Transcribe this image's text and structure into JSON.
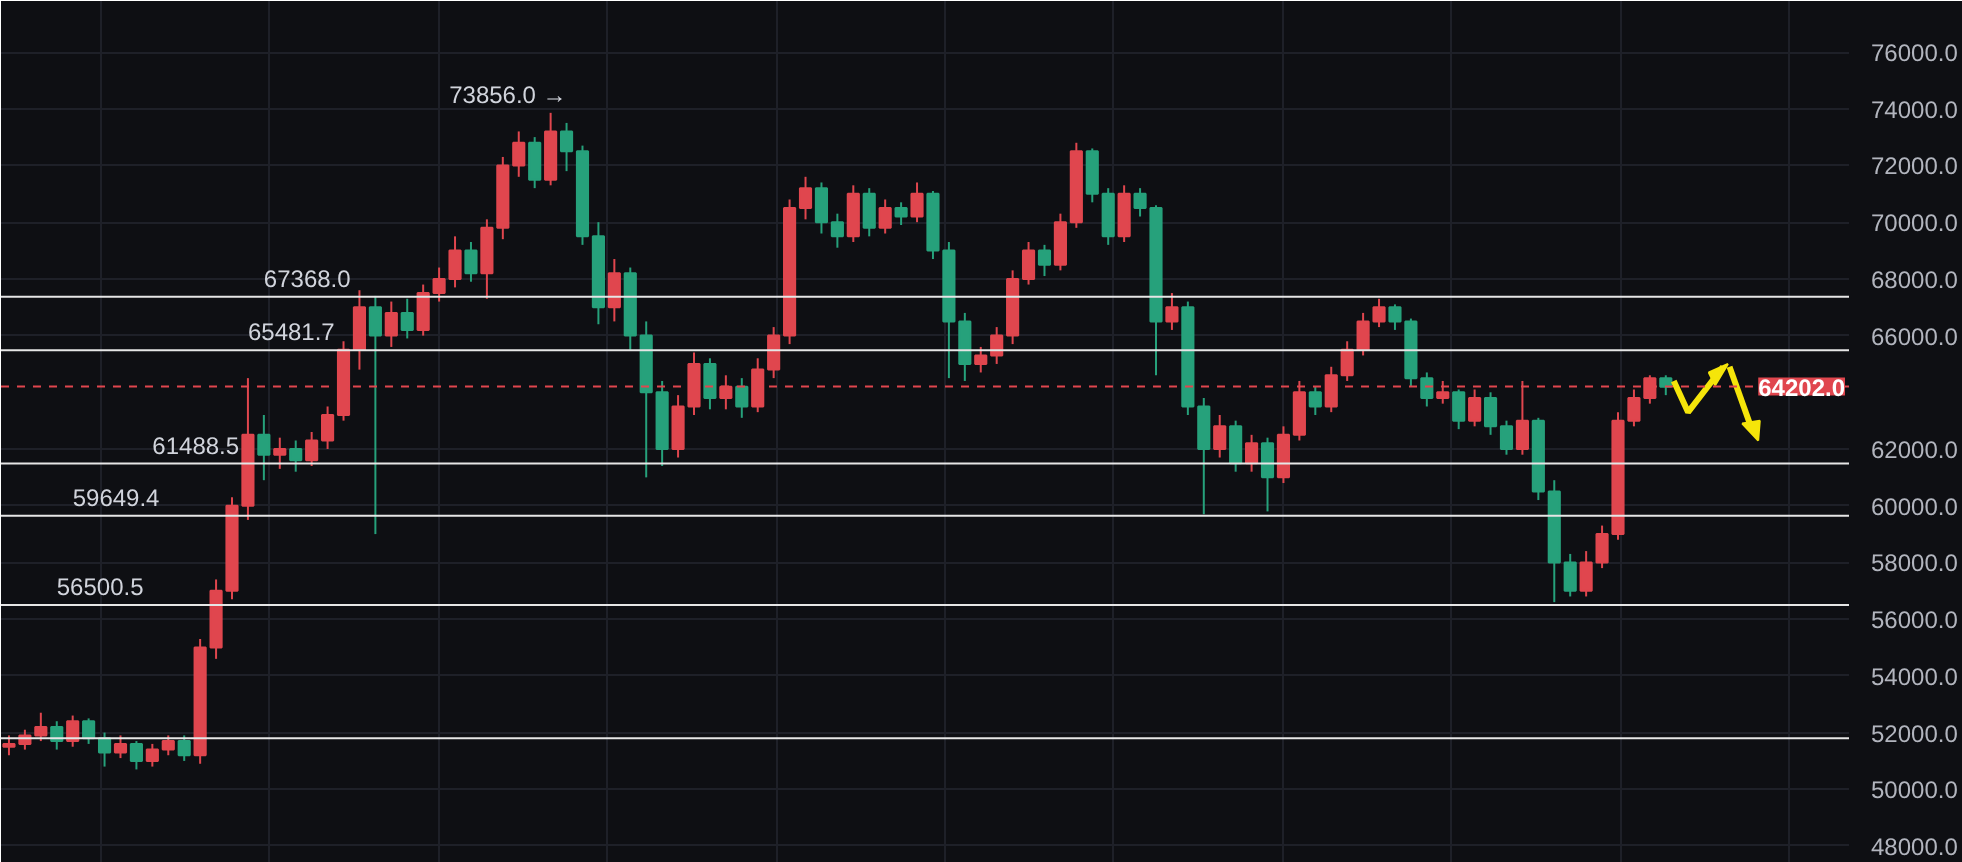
{
  "chart_data": {
    "type": "candlestick",
    "categories": [
      null,
      null,
      null,
      null,
      null,
      null,
      null,
      null,
      null,
      null,
      null,
      null,
      null,
      null,
      null,
      null,
      null,
      null,
      null,
      null,
      null,
      null,
      null,
      null,
      null,
      null,
      null,
      null,
      null,
      null,
      null,
      null,
      null,
      null,
      null,
      null,
      null,
      null,
      null,
      null,
      null,
      null,
      null,
      null,
      null,
      null,
      null,
      null,
      null,
      null,
      null,
      null,
      null,
      null,
      null,
      null,
      null,
      null,
      null,
      null,
      null,
      null,
      null,
      null,
      null,
      null,
      null,
      null,
      null,
      null,
      null,
      null,
      null,
      null,
      null,
      null,
      null,
      null,
      null,
      null,
      null,
      null,
      null,
      null,
      null,
      null,
      null,
      null,
      null,
      null,
      null,
      null,
      null,
      null,
      null,
      null,
      null,
      null,
      null,
      null,
      null,
      null,
      null,
      null,
      null,
      null,
      null,
      null,
      null,
      null,
      null,
      null,
      null,
      null,
      null,
      null
    ],
    "ohlc": [
      [
        51500,
        51900,
        51200,
        51600
      ],
      [
        51600,
        52100,
        51400,
        51900
      ],
      [
        51900,
        52700,
        51700,
        52200
      ],
      [
        52200,
        52400,
        51400,
        51700
      ],
      [
        51700,
        52600,
        51500,
        52400
      ],
      [
        52400,
        52500,
        51600,
        51800
      ],
      [
        51800,
        52000,
        50800,
        51300
      ],
      [
        51300,
        51900,
        51100,
        51600
      ],
      [
        51600,
        51700,
        50700,
        51000
      ],
      [
        51000,
        51600,
        50800,
        51400
      ],
      [
        51400,
        51900,
        51200,
        51700
      ],
      [
        51700,
        51900,
        51000,
        51200
      ],
      [
        51200,
        55300,
        50900,
        55000
      ],
      [
        55000,
        57400,
        54600,
        57000
      ],
      [
        57000,
        60300,
        56700,
        60000
      ],
      [
        60000,
        64500,
        59500,
        62500
      ],
      [
        62500,
        63200,
        60900,
        61800
      ],
      [
        61800,
        62400,
        61300,
        62000
      ],
      [
        62000,
        62300,
        61200,
        61600
      ],
      [
        61600,
        62600,
        61400,
        62300
      ],
      [
        62300,
        63500,
        62000,
        63200
      ],
      [
        63200,
        65800,
        63000,
        65500
      ],
      [
        65500,
        67600,
        64800,
        67000
      ],
      [
        67000,
        67400,
        59000,
        66000
      ],
      [
        66000,
        67200,
        65600,
        66800
      ],
      [
        66800,
        67300,
        65900,
        66200
      ],
      [
        66200,
        67800,
        66000,
        67500
      ],
      [
        67500,
        68400,
        67200,
        68000
      ],
      [
        68000,
        69500,
        67700,
        69000
      ],
      [
        69000,
        69300,
        67900,
        68200
      ],
      [
        68200,
        70100,
        67300,
        69800
      ],
      [
        69800,
        72300,
        69400,
        72000
      ],
      [
        72000,
        73200,
        71600,
        72800
      ],
      [
        72800,
        73000,
        71200,
        71500
      ],
      [
        71500,
        73856,
        71300,
        73200
      ],
      [
        73200,
        73500,
        71800,
        72500
      ],
      [
        72500,
        72700,
        69200,
        69500
      ],
      [
        69500,
        70000,
        66400,
        67000
      ],
      [
        67000,
        68700,
        66500,
        68200
      ],
      [
        68200,
        68400,
        65500,
        66000
      ],
      [
        66000,
        66500,
        61000,
        64000
      ],
      [
        64000,
        64400,
        61400,
        62000
      ],
      [
        62000,
        63900,
        61700,
        63500
      ],
      [
        63500,
        65400,
        63200,
        65000
      ],
      [
        65000,
        65200,
        63400,
        63800
      ],
      [
        63800,
        64600,
        63400,
        64200
      ],
      [
        64200,
        64500,
        63100,
        63500
      ],
      [
        63500,
        65200,
        63300,
        64800
      ],
      [
        64800,
        66300,
        64500,
        66000
      ],
      [
        66000,
        70800,
        65700,
        70500
      ],
      [
        70500,
        71600,
        70100,
        71200
      ],
      [
        71200,
        71400,
        69600,
        70000
      ],
      [
        70000,
        70300,
        69100,
        69500
      ],
      [
        69500,
        71300,
        69300,
        71000
      ],
      [
        71000,
        71200,
        69500,
        69800
      ],
      [
        69800,
        70800,
        69600,
        70500
      ],
      [
        70500,
        70700,
        69900,
        70200
      ],
      [
        70200,
        71400,
        70000,
        71000
      ],
      [
        71000,
        71100,
        68700,
        69000
      ],
      [
        69000,
        69300,
        64500,
        66500
      ],
      [
        66500,
        66800,
        64400,
        65000
      ],
      [
        65000,
        65600,
        64700,
        65300
      ],
      [
        65300,
        66300,
        65000,
        66000
      ],
      [
        66000,
        68300,
        65700,
        68000
      ],
      [
        68000,
        69300,
        67800,
        69000
      ],
      [
        69000,
        69200,
        68100,
        68500
      ],
      [
        68500,
        70300,
        68300,
        70000
      ],
      [
        70000,
        72800,
        69800,
        72500
      ],
      [
        72500,
        72600,
        70700,
        71000
      ],
      [
        71000,
        71200,
        69200,
        69500
      ],
      [
        69500,
        71300,
        69300,
        71000
      ],
      [
        71000,
        71200,
        70200,
        70500
      ],
      [
        70500,
        70600,
        64600,
        66500
      ],
      [
        66500,
        67500,
        66200,
        67000
      ],
      [
        67000,
        67200,
        63200,
        63500
      ],
      [
        63500,
        63800,
        59700,
        62000
      ],
      [
        62000,
        63200,
        61700,
        62800
      ],
      [
        62800,
        63000,
        61200,
        61500
      ],
      [
        61500,
        62500,
        61200,
        62200
      ],
      [
        62200,
        62400,
        59800,
        61000
      ],
      [
        61000,
        62800,
        60800,
        62500
      ],
      [
        62500,
        64400,
        62300,
        64000
      ],
      [
        64000,
        64200,
        63200,
        63500
      ],
      [
        63500,
        64900,
        63300,
        64600
      ],
      [
        64600,
        65800,
        64400,
        65500
      ],
      [
        65500,
        66800,
        65300,
        66500
      ],
      [
        66500,
        67300,
        66300,
        67000
      ],
      [
        67000,
        67100,
        66200,
        66500
      ],
      [
        66500,
        66600,
        64200,
        64500
      ],
      [
        64500,
        64700,
        63500,
        63800
      ],
      [
        63800,
        64400,
        63600,
        64000
      ],
      [
        64000,
        64100,
        62700,
        63000
      ],
      [
        63000,
        64100,
        62800,
        63800
      ],
      [
        63800,
        64000,
        62500,
        62800
      ],
      [
        62800,
        63000,
        61800,
        62000
      ],
      [
        62000,
        64400,
        61800,
        63000
      ],
      [
        63000,
        63100,
        60200,
        60500
      ],
      [
        60500,
        60900,
        56600,
        58000
      ],
      [
        58000,
        58300,
        56800,
        57000
      ],
      [
        57000,
        58400,
        56800,
        58000
      ],
      [
        58000,
        59300,
        57800,
        59000
      ],
      [
        59000,
        63300,
        58800,
        63000
      ],
      [
        63000,
        64100,
        62800,
        63800
      ],
      [
        63800,
        64600,
        63600,
        64500
      ],
      [
        64500,
        64600,
        63900,
        64200
      ],
      null,
      null,
      null,
      null,
      null,
      null,
      null,
      null,
      null,
      null,
      null
    ],
    "colors": [
      "#e0464e",
      "#e0464e",
      "#e0464e",
      "#26a17b",
      "#e0464e",
      "#26a17b",
      "#26a17b",
      "#e0464e",
      "#26a17b",
      "#e0464e",
      "#e0464e",
      "#26a17b",
      "#e0464e",
      "#e0464e",
      "#e0464e",
      "#e0464e",
      "#26a17b",
      "#e0464e",
      "#26a17b",
      "#e0464e",
      "#e0464e",
      "#e0464e",
      "#e0464e",
      "#26a17b",
      "#e0464e",
      "#26a17b",
      "#e0464e",
      "#e0464e",
      "#e0464e",
      "#26a17b",
      "#e0464e",
      "#e0464e",
      "#e0464e",
      "#26a17b",
      "#e0464e",
      "#26a17b",
      "#26a17b",
      "#26a17b",
      "#e0464e",
      "#26a17b",
      "#26a17b",
      "#26a17b",
      "#e0464e",
      "#e0464e",
      "#26a17b",
      "#e0464e",
      "#26a17b",
      "#e0464e",
      "#e0464e",
      "#e0464e",
      "#e0464e",
      "#26a17b",
      "#26a17b",
      "#e0464e",
      "#26a17b",
      "#e0464e",
      "#26a17b",
      "#e0464e",
      "#26a17b",
      "#26a17b",
      "#26a17b",
      "#e0464e",
      "#e0464e",
      "#e0464e",
      "#e0464e",
      "#26a17b",
      "#e0464e",
      "#e0464e",
      "#26a17b",
      "#26a17b",
      "#e0464e",
      "#26a17b",
      "#26a17b",
      "#e0464e",
      "#26a17b",
      "#26a17b",
      "#e0464e",
      "#26a17b",
      "#e0464e",
      "#26a17b",
      "#e0464e",
      "#e0464e",
      "#26a17b",
      "#e0464e",
      "#e0464e",
      "#e0464e",
      "#e0464e",
      "#26a17b",
      "#26a17b",
      "#26a17b",
      "#e0464e",
      "#26a17b",
      "#e0464e",
      "#26a17b",
      "#26a17b",
      "#e0464e",
      "#26a17b",
      "#26a17b",
      "#26a17b",
      "#e0464e",
      "#e0464e",
      "#e0464e",
      "#e0464e",
      "#e0464e",
      "#26a17b",
      null,
      null,
      null,
      null,
      null,
      null,
      null,
      null,
      null,
      null,
      null
    ],
    "ylim": [
      47400,
      77800
    ],
    "yticks": [
      {
        "value": 48000,
        "label": "48000.0"
      },
      {
        "value": 50000,
        "label": "50000.0"
      },
      {
        "value": 52000,
        "label": "52000.0"
      },
      {
        "value": 54000,
        "label": "54000.0"
      },
      {
        "value": 56000,
        "label": "56000.0"
      },
      {
        "value": 58000,
        "label": "58000.0"
      },
      {
        "value": 60000,
        "label": "60000.0"
      },
      {
        "value": 62000,
        "label": "62000.0"
      },
      {
        "value": 66000,
        "label": "66000.0"
      },
      {
        "value": 68000,
        "label": "68000.0"
      },
      {
        "value": 70000,
        "label": "70000.0"
      },
      {
        "value": 72000,
        "label": "72000.0"
      },
      {
        "value": 74000,
        "label": "74000.0"
      },
      {
        "value": 76000,
        "label": "76000.0"
      }
    ],
    "tick_labels": "y",
    "grid": true,
    "ref_lines": [
      {
        "axis": "y",
        "value": 67368,
        "label": "67368.0",
        "color": "#e6e6e6"
      },
      {
        "axis": "y",
        "value": 65481.7,
        "label": "65481.7",
        "color": "#e6e6e6"
      },
      {
        "axis": "y",
        "value": 61488.5,
        "label": "61488.5",
        "color": "#e6e6e6"
      },
      {
        "axis": "y",
        "value": 59649.4,
        "label": "59649.4",
        "color": "#e6e6e6"
      },
      {
        "axis": "y",
        "value": 56500.5,
        "label": "56500.5",
        "color": "#e6e6e6"
      },
      {
        "axis": "y",
        "value": 51800,
        "label": null,
        "color": "#e6e6e6"
      },
      {
        "axis": "y",
        "value": 64202,
        "label": "64202.0",
        "color": "#e0464e",
        "line_style": "dashed"
      }
    ],
    "annotations": [
      "73856.0 →"
    ]
  }
}
